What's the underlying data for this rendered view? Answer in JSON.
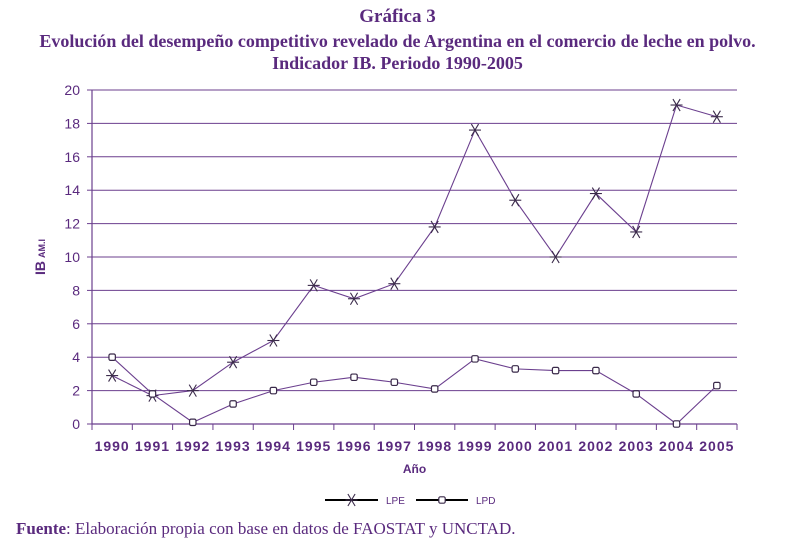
{
  "chart_data": {
    "type": "line",
    "title": "Gráfica 3",
    "subtitle": "Evolución del desempeño competitivo revelado de Argentina en el comercio de leche en polvo.",
    "subtitle2": "Indicador IB. Periodo 1990-2005",
    "xlabel": "Año",
    "ylabel_main": "IB",
    "ylabel_sub": "AM.I",
    "ylim": [
      0,
      20
    ],
    "yticks": [
      0,
      2,
      4,
      6,
      8,
      10,
      12,
      14,
      16,
      18,
      20
    ],
    "grid": true,
    "legend_position": "bottom",
    "categories": [
      "1990",
      "1991",
      "1992",
      "1993",
      "1994",
      "1995",
      "1996",
      "1997",
      "1998",
      "1999",
      "2000",
      "2001",
      "2002",
      "2003",
      "2004",
      "2005"
    ],
    "series": [
      {
        "name": "LPE",
        "marker": "asterisk",
        "values": [
          2.9,
          1.7,
          2.0,
          3.7,
          5.0,
          8.3,
          7.5,
          8.4,
          11.8,
          17.6,
          13.4,
          10.0,
          13.8,
          11.5,
          19.1,
          18.4
        ]
      },
      {
        "name": "LPD",
        "marker": "square",
        "values": [
          4.0,
          1.8,
          0.1,
          1.2,
          2.0,
          2.5,
          2.8,
          2.5,
          2.1,
          3.9,
          3.3,
          3.2,
          3.2,
          1.8,
          0.0,
          2.3
        ]
      }
    ],
    "colors": {
      "line": "#6b3f8e",
      "grid": "#6b3f8e",
      "text": "#5a2a7e",
      "marker": "#3a2a4a"
    }
  },
  "source": {
    "label": "Fuente",
    "text": ": Elaboración propia con base en datos de FAOSTAT y UNCTAD."
  }
}
